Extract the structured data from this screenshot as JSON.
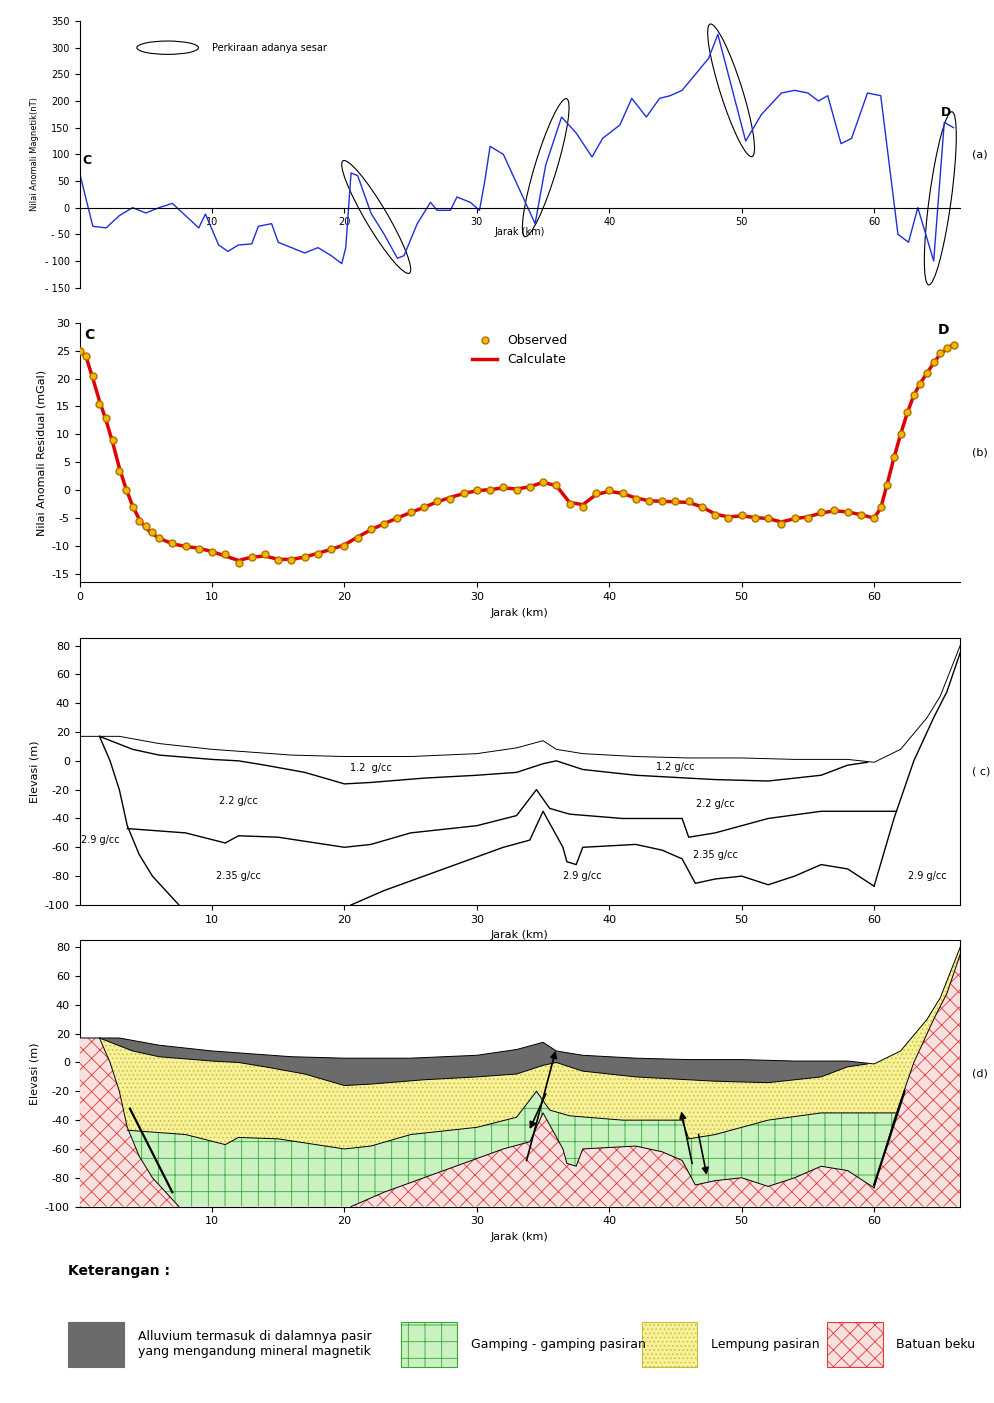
{
  "chart_data": [
    {
      "type": "line",
      "panel_label": "(a)",
      "x_label": "Jarak (km)",
      "y_label": "Nilai Anomali Magnetik(nT)",
      "start_label": "C",
      "end_label": "D",
      "color": "#1f2fd8",
      "xlim": [
        0,
        66.5
      ],
      "ylim": [
        -150,
        350
      ],
      "xticks": [
        10,
        20,
        30,
        40,
        50,
        60
      ],
      "yticks": [
        {
          "value": -150,
          "label": "- 150"
        },
        {
          "value": -100,
          "label": "- 100"
        },
        {
          "value": -50,
          "label": "- 50"
        },
        0,
        50,
        100,
        150,
        200,
        250,
        300,
        350
      ],
      "x": [
        0,
        1,
        2,
        3,
        4,
        5,
        6,
        7,
        8,
        9,
        9.5,
        10.5,
        11.2,
        12,
        13,
        13.5,
        14.5,
        15,
        16,
        17,
        18,
        19,
        19.8,
        20.1,
        20.5,
        21,
        22,
        23,
        24,
        24.5,
        25.5,
        26.5,
        27,
        28,
        28.5,
        29.5,
        30.2,
        30.6,
        31,
        32,
        34.4,
        35.2,
        36.4,
        37.5,
        38.7,
        39.5,
        40.8,
        41.7,
        42.8,
        43.8,
        44.6,
        45.5,
        46.5,
        47.5,
        48.2,
        50.3,
        51.5,
        53,
        54,
        55,
        55.8,
        56.5,
        57.5,
        58.3,
        59.5,
        60.5,
        61.8,
        62.6,
        63.3,
        64.5,
        65.3,
        66
      ],
      "values": [
        65,
        -35,
        -38,
        -15,
        0,
        -10,
        0,
        8,
        -15,
        -38,
        -12,
        -70,
        -82,
        -70,
        -68,
        -35,
        -30,
        -65,
        -75,
        -85,
        -75,
        -90,
        -105,
        -75,
        65,
        60,
        -10,
        -50,
        -95,
        -90,
        -30,
        10,
        -5,
        -5,
        20,
        10,
        -5,
        50,
        115,
        100,
        -30,
        80,
        170,
        140,
        95,
        130,
        155,
        205,
        170,
        205,
        210,
        220,
        250,
        280,
        325,
        125,
        175,
        215,
        220,
        215,
        200,
        210,
        120,
        130,
        215,
        210,
        -50,
        -65,
        0,
        -100,
        160,
        150
      ],
      "fault_zones": {
        "label": "Perkiraan adanya sesar",
        "zones": [
          {
            "x": [
              20.2,
              24.6
            ],
            "y": [
              75,
              -110
            ]
          },
          {
            "x": [
              33.8,
              36.6
            ],
            "y": [
              -40,
              190
            ]
          },
          {
            "x": [
              47.8,
              50.6
            ],
            "y": [
              330,
              110
            ]
          },
          {
            "x": [
              64.2,
              65.8
            ],
            "y": [
              -130,
              165
            ]
          }
        ]
      }
    },
    {
      "type": "line",
      "panel_label": "(b)",
      "x_label": "Jarak (km)",
      "y_label": "Nilai Anomali Residual (mGal)",
      "start_label": "C",
      "end_label": "D",
      "legend": "upper center",
      "xlim": [
        0,
        66.5
      ],
      "ylim": [
        -16.5,
        30
      ],
      "xticks": [
        0,
        10,
        20,
        30,
        40,
        50,
        60
      ],
      "yticks": [
        -15,
        -10,
        -5,
        0,
        5,
        10,
        15,
        20,
        25,
        30
      ],
      "x": [
        0,
        0.5,
        1,
        1.5,
        2,
        2.5,
        3,
        3.5,
        4,
        4.5,
        5,
        5.5,
        6,
        7,
        8,
        9,
        10,
        11,
        12,
        13,
        14,
        15,
        16,
        17,
        18,
        19,
        20,
        21,
        22,
        23,
        24,
        25,
        26,
        27,
        28,
        29,
        30,
        31,
        32,
        33,
        34,
        35,
        36,
        37,
        38,
        39,
        40,
        41,
        42,
        43,
        44,
        45,
        46,
        47,
        48,
        49,
        50,
        51,
        52,
        53,
        54,
        55,
        56,
        57,
        58,
        59,
        60,
        60.5,
        61,
        61.5,
        62,
        62.5,
        63,
        63.5,
        64,
        64.5,
        65,
        65.5,
        66
      ],
      "series": [
        {
          "name": "Observed",
          "type": "scatter",
          "color": "#f5b800",
          "marker": "o",
          "values": [
            25,
            24,
            20.5,
            15.5,
            13,
            9,
            3.5,
            0,
            -3,
            -5.5,
            -6.5,
            -7.5,
            -8.5,
            -9.5,
            -10,
            -10.5,
            -11,
            -11.5,
            -13,
            -12,
            -11.5,
            -12.5,
            -12.5,
            -12,
            -11.5,
            -10.5,
            -10,
            -8.5,
            -7,
            -6,
            -5,
            -4,
            -3,
            -2,
            -1.5,
            -0.5,
            0,
            0,
            0.5,
            0,
            0.5,
            1.5,
            1,
            -2.5,
            -3,
            -0.5,
            0,
            -0.5,
            -1.5,
            -2,
            -2,
            -2,
            -2,
            -3,
            -4.5,
            -5,
            -4.5,
            -5,
            -5,
            -6,
            -5,
            -5,
            -4,
            -3.5,
            -4,
            -4.5,
            -5,
            -3,
            1,
            6,
            10,
            14,
            17,
            19,
            21,
            23,
            24.5,
            25.5,
            26
          ]
        },
        {
          "name": "Calculate",
          "type": "line",
          "color": "#e00000",
          "values": [
            25.2,
            23.8,
            20,
            16,
            12.5,
            8.5,
            4,
            0.3,
            -2.8,
            -5.2,
            -6.8,
            -7.8,
            -8.6,
            -9.6,
            -10.1,
            -10.4,
            -11,
            -11.8,
            -12.6,
            -12,
            -11.8,
            -12.4,
            -12.4,
            -12,
            -11.3,
            -10.6,
            -9.8,
            -8.4,
            -7.1,
            -6,
            -5,
            -4,
            -3.1,
            -2.1,
            -1.3,
            -0.6,
            -0.1,
            0.1,
            0.4,
            0.2,
            0.6,
            1.4,
            0.8,
            -2.2,
            -2.6,
            -0.8,
            -0.2,
            -0.6,
            -1.4,
            -1.9,
            -2,
            -2.1,
            -2.2,
            -3,
            -4.3,
            -4.8,
            -4.6,
            -4.9,
            -5.1,
            -5.7,
            -5.1,
            -4.8,
            -4.1,
            -3.7,
            -3.9,
            -4.4,
            -5,
            -3.2,
            1.2,
            5.8,
            10,
            13.8,
            17,
            19.2,
            21,
            22.8,
            24.4,
            25.3,
            26.2
          ]
        }
      ]
    },
    {
      "type": "cross_section",
      "panel_label": "( c)",
      "x_label": "Jarak (km)",
      "y_label": "Elevasi (m)",
      "xlim": [
        0,
        66.5
      ],
      "ylim": [
        -100,
        85
      ],
      "xticks": [
        10,
        20,
        30,
        40,
        50,
        60
      ],
      "yticks": [
        -100,
        -80,
        -60,
        -40,
        -20,
        0,
        20,
        40,
        60,
        80
      ],
      "surfaces": {
        "topography": {
          "x": [
            0,
            1.5,
            3,
            6,
            10,
            13,
            16,
            20,
            25,
            30,
            33,
            35,
            36,
            38,
            42,
            46,
            50,
            54,
            58,
            60,
            62,
            64,
            65,
            66.5
          ],
          "y": [
            17,
            17,
            17,
            12,
            8,
            6,
            4,
            3,
            3,
            5,
            9,
            14,
            8,
            5,
            3,
            2,
            2,
            1,
            1,
            -1,
            8,
            30,
            45,
            80
          ]
        },
        "alluvium_base": {
          "x": [
            1.5,
            4,
            6,
            10,
            12,
            14,
            17,
            20,
            22,
            26,
            30,
            33,
            35,
            36,
            38,
            42,
            48,
            52,
            56,
            58,
            59.5
          ],
          "y": [
            17,
            8,
            4,
            1,
            0,
            -3,
            -8,
            -16,
            -15,
            -12,
            -10,
            -8,
            -2,
            0,
            -6,
            -10,
            -13,
            -14,
            -10,
            -3,
            -1
          ]
        },
        "layer_base": {
          "x": [
            3.6,
            8,
            11,
            12,
            15,
            20,
            22,
            25,
            30,
            33,
            34.5,
            35.5,
            37,
            41,
            45.5,
            46,
            48,
            52,
            56,
            61.7
          ],
          "y": [
            -47,
            -50,
            -57,
            -52,
            -53,
            -60,
            -58,
            -50,
            -45,
            -38,
            -20,
            -33,
            -37,
            -40,
            -40,
            -53,
            -50,
            -40,
            -35,
            -35
          ]
        },
        "basement_top": {
          "x": [
            20.5,
            23,
            26,
            29,
            32,
            34,
            35,
            36.5,
            36.8,
            37.5,
            38,
            42,
            44,
            45.5,
            46.5,
            48,
            50,
            52,
            54,
            56,
            58,
            60
          ],
          "y": [
            -100,
            -90,
            -80,
            -70,
            -60,
            -55,
            -35,
            -60,
            -70,
            -72,
            -60,
            -58,
            -62,
            -68,
            -85,
            -82,
            -80,
            -86,
            -80,
            -72,
            -75,
            -87
          ]
        },
        "left_boundary": {
          "x": [
            1.5,
            2.3,
            3,
            3.6,
            4.5,
            5.5,
            7.5
          ],
          "y": [
            17,
            0,
            -20,
            -45,
            -65,
            -80,
            -100
          ]
        },
        "right_boundary": {
          "x": [
            60,
            61.5,
            63,
            64.5,
            65.5,
            66.5
          ],
          "y": [
            -87,
            -40,
            0,
            30,
            48,
            75
          ]
        }
      },
      "labels": [
        {
          "text": "1.2  g/cc",
          "x": 22,
          "y": -5
        },
        {
          "text": "1.2 g/cc",
          "x": 45,
          "y": -4
        },
        {
          "text": "2.2 g/cc",
          "x": 12,
          "y": -28
        },
        {
          "text": "2.2 g/cc",
          "x": 48,
          "y": -30
        },
        {
          "text": "2.35 g/cc",
          "x": 12,
          "y": -80
        },
        {
          "text": "2.35 g/cc",
          "x": 48,
          "y": -65
        },
        {
          "text": "2.9 g/cc",
          "x": 1.6,
          "y": -55
        },
        {
          "text": "2.9 g/cc",
          "x": 38,
          "y": -80
        },
        {
          "text": "2.9 g/cc",
          "x": 64,
          "y": -80
        }
      ]
    },
    {
      "type": "geologic_section",
      "panel_label": "(d)",
      "x_label": "Jarak (km)",
      "y_label": "Elevasi (m)",
      "xlim": [
        0,
        66.5
      ],
      "ylim": [
        -100,
        85
      ],
      "xticks": [
        10,
        20,
        30,
        40,
        50,
        60
      ],
      "yticks": [
        -100,
        -80,
        -60,
        -40,
        -20,
        0,
        20,
        40,
        60,
        80
      ],
      "legend_title": "Keterangan :",
      "units": [
        {
          "name": "Alluvium termasuk di dalamnya pasir yang mengandung mineral magnetik",
          "color": "#6b6b6b"
        },
        {
          "name": "Gamping - gamping pasiran",
          "color": "#c9f2c0"
        },
        {
          "name": "Lempung pasiran",
          "color": "#f7f29a"
        },
        {
          "name": "Batuan beku",
          "color": "#fbe0e0"
        }
      ],
      "faults": [
        {
          "x": [
            3.8,
            7
          ],
          "y": [
            -32,
            -90
          ]
        },
        {
          "x": [
            62.3,
            60
          ],
          "y": [
            -20,
            -85
          ]
        }
      ],
      "arrows": [
        {
          "x": [
            33.7,
            36
          ],
          "y": [
            -70,
            10
          ]
        },
        {
          "x": [
            35.3,
            33.9
          ],
          "y": [
            -20,
            -48
          ]
        },
        {
          "x": [
            46.3,
            45.4
          ],
          "y": [
            -72,
            -32
          ]
        },
        {
          "x": [
            46.7,
            47.4
          ],
          "y": [
            -48,
            -80
          ]
        }
      ]
    }
  ]
}
